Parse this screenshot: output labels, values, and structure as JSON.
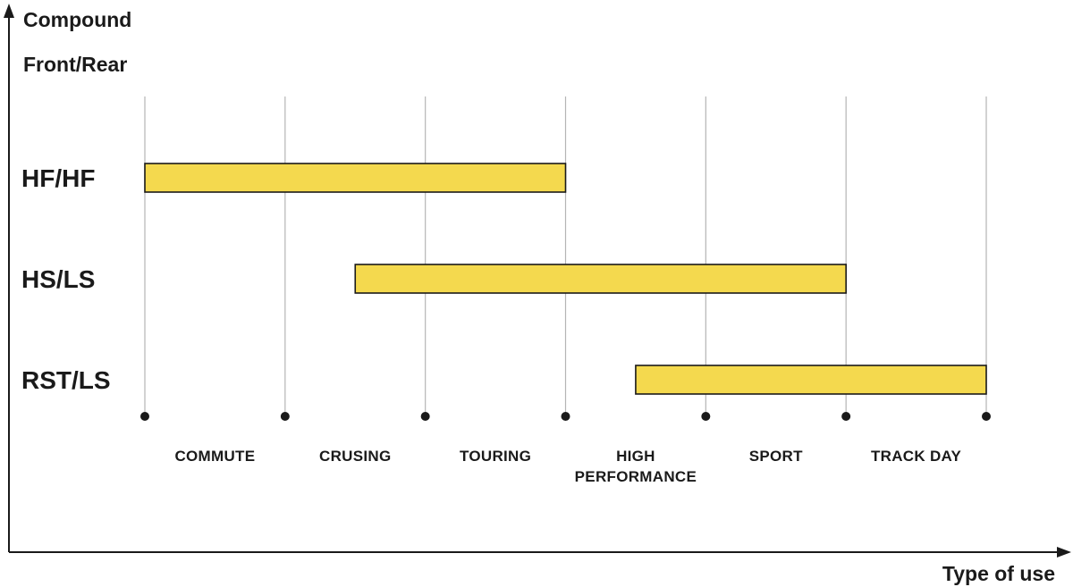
{
  "chart_data": {
    "type": "bar",
    "orientation": "horizontal-range",
    "ylabel_line1": "Compound",
    "ylabel_line2": "Front/Rear",
    "xlabel": "Type of use",
    "x_ticks": [
      "COMMUTE",
      "CRUSING",
      "TOURING",
      "HIGH\nPERFORMANCE",
      "SPORT",
      "TRACK DAY"
    ],
    "categories": [
      "HF/HF",
      "HS/LS",
      "RST/LS"
    ],
    "ranges": [
      {
        "category": "HF/HF",
        "start": 0,
        "end": 3
      },
      {
        "category": "HS/LS",
        "start": 1.5,
        "end": 5
      },
      {
        "category": "RST/LS",
        "start": 3.5,
        "end": 6
      }
    ],
    "xlim": [
      0,
      6
    ],
    "grid": true,
    "bar_color": "#f4d94e"
  }
}
